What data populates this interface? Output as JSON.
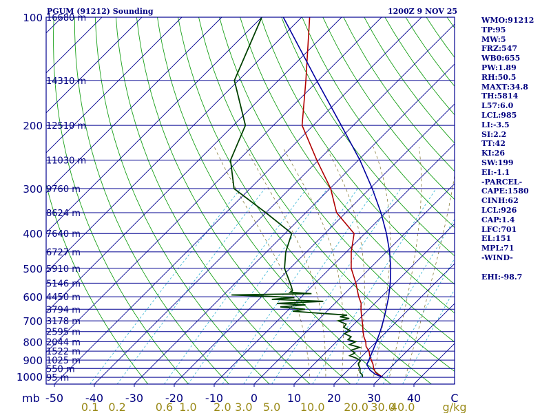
{
  "header": {
    "station": "PGUM (91212) Sounding",
    "time": "1200Z  9 NOV 25"
  },
  "indices": [
    "WMO:91212",
    "TP:95",
    "MW:5",
    "FRZ:547",
    "WB0:655",
    "PW:1.89",
    "RH:50.5",
    "MAXT:34.8",
    "TH:5814",
    "L57:6.0",
    "LCL:985",
    "LI:-3.5",
    "SI:2.2",
    "TT:42",
    "KI:26",
    "SW:199",
    "EI:-1.1",
    "-PARCEL-",
    "CAPE:1580",
    "CINH:62",
    "LCL:926",
    "CAP:1.4",
    "LFC:701",
    "EL:151",
    "MPL:71",
    "-WIND-",
    "",
    "EHI:-98.7"
  ],
  "chart_data": {
    "type": "skew-t",
    "pressure_unit_label": "mb",
    "temperature_unit_label": "C",
    "mixing_ratio_unit_label": "g/kg",
    "pressure_labels": [
      100,
      200,
      300,
      400,
      500,
      600,
      700,
      800,
      900,
      1000
    ],
    "temperature_ticks": [
      -50,
      -40,
      -30,
      -20,
      -10,
      0,
      10,
      20,
      30,
      40
    ],
    "mixing_ratio_labels": [
      "0.1",
      "0.2",
      "0.6",
      "1.0",
      "2.0",
      "3.0",
      "5.0",
      "10.0",
      "20.0",
      "30.0",
      "40.0"
    ],
    "height_levels": [
      {
        "p": 100,
        "label": "16680 m"
      },
      {
        "p": 150,
        "label": "14310 m"
      },
      {
        "p": 200,
        "label": "12510 m"
      },
      {
        "p": 250,
        "label": "11030 m"
      },
      {
        "p": 300,
        "label": "9760 m"
      },
      {
        "p": 350,
        "label": "8624 m"
      },
      {
        "p": 400,
        "label": "7640 m"
      },
      {
        "p": 450,
        "label": "6727 m"
      },
      {
        "p": 500,
        "label": "5910 m"
      },
      {
        "p": 550,
        "label": "5146 m"
      },
      {
        "p": 600,
        "label": "4450 m"
      },
      {
        "p": 650,
        "label": "3794 m"
      },
      {
        "p": 700,
        "label": "3178 m"
      },
      {
        "p": 750,
        "label": "2595 m"
      },
      {
        "p": 800,
        "label": "2044 m"
      },
      {
        "p": 850,
        "label": "1522 m"
      },
      {
        "p": 900,
        "label": "1025 m"
      },
      {
        "p": 950,
        "label": "550 m"
      },
      {
        "p": 1005,
        "label": "95 m"
      }
    ],
    "series": [
      {
        "key": "temperature",
        "color": "#b00000",
        "points": [
          [
            1005,
            30.5
          ],
          [
            975,
            27.5
          ],
          [
            950,
            26.0
          ],
          [
            925,
            24.8
          ],
          [
            900,
            23.3
          ],
          [
            875,
            21.8
          ],
          [
            850,
            20.5
          ],
          [
            825,
            18.6
          ],
          [
            800,
            17.3
          ],
          [
            775,
            15.6
          ],
          [
            750,
            14.1
          ],
          [
            725,
            12.7
          ],
          [
            700,
            11.2
          ],
          [
            675,
            9.6
          ],
          [
            650,
            8.0
          ],
          [
            625,
            6.5
          ],
          [
            600,
            4.3
          ],
          [
            550,
            0.2
          ],
          [
            500,
            -4.7
          ],
          [
            450,
            -8.8
          ],
          [
            400,
            -12.7
          ],
          [
            350,
            -22.3
          ],
          [
            300,
            -29.8
          ],
          [
            250,
            -40.4
          ],
          [
            200,
            -52.8
          ],
          [
            150,
            -63.1
          ],
          [
            100,
            -78.0
          ]
        ]
      },
      {
        "key": "dewpoint",
        "color": "#004000",
        "points": [
          [
            1005,
            25.4
          ],
          [
            990,
            24.8
          ],
          [
            975,
            23.6
          ],
          [
            960,
            23.0
          ],
          [
            950,
            22.6
          ],
          [
            930,
            21.4
          ],
          [
            920,
            20.9
          ],
          [
            905,
            20.8
          ],
          [
            890,
            19.2
          ],
          [
            875,
            16.8
          ],
          [
            860,
            17.4
          ],
          [
            845,
            15.8
          ],
          [
            830,
            17.2
          ],
          [
            815,
            14.0
          ],
          [
            800,
            14.8
          ],
          [
            790,
            12.4
          ],
          [
            775,
            12.4
          ],
          [
            760,
            10.0
          ],
          [
            745,
            10.6
          ],
          [
            730,
            8.2
          ],
          [
            715,
            8.0
          ],
          [
            700,
            5.2
          ],
          [
            690,
            7.4
          ],
          [
            682,
            4.6
          ],
          [
            675,
            6.0
          ],
          [
            665,
            -2.8
          ],
          [
            658,
            -8.6
          ],
          [
            650,
            -6.0
          ],
          [
            640,
            -12.8
          ],
          [
            632,
            -7.0
          ],
          [
            626,
            -14.5
          ],
          [
            618,
            -3.4
          ],
          [
            610,
            -16.8
          ],
          [
            603,
            -11.6
          ],
          [
            598,
            -18.8
          ],
          [
            593,
            -28.0
          ],
          [
            588,
            -8.3
          ],
          [
            583,
            -14.0
          ],
          [
            577,
            -13.8
          ],
          [
            560,
            -15.3
          ],
          [
            500,
            -21.4
          ],
          [
            450,
            -25.2
          ],
          [
            400,
            -28.3
          ],
          [
            350,
            -40.0
          ],
          [
            300,
            -54.0
          ],
          [
            250,
            -62.0
          ],
          [
            200,
            -67.0
          ],
          [
            150,
            -81.0
          ],
          [
            100,
            -90.0
          ]
        ]
      },
      {
        "key": "parcel",
        "color": "#0000a0",
        "points": [
          [
            1005,
            30.5
          ],
          [
            985,
            27.8
          ],
          [
            960,
            25.5
          ],
          [
            926,
            23.3
          ],
          [
            900,
            22.7
          ],
          [
            850,
            21.4
          ],
          [
            800,
            20.0
          ],
          [
            750,
            18.4
          ],
          [
            700,
            16.5
          ],
          [
            650,
            14.3
          ],
          [
            600,
            11.8
          ],
          [
            550,
            8.8
          ],
          [
            500,
            5.2
          ],
          [
            450,
            0.8
          ],
          [
            400,
            -4.6
          ],
          [
            350,
            -11.2
          ],
          [
            300,
            -19.4
          ],
          [
            250,
            -29.6
          ],
          [
            200,
            -43.0
          ],
          [
            151,
            -60.0
          ],
          [
            100,
            -84.6
          ]
        ]
      }
    ]
  }
}
